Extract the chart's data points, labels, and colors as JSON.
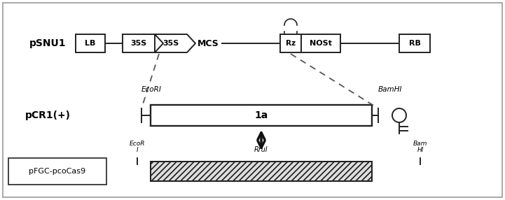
{
  "psnu1_label": "pSNU1",
  "lb_label": "LB",
  "35s1_label": "35S",
  "35s2_label": "35S",
  "mcs_label": "MCS",
  "rz_label": "Rz",
  "nost_label": "NOSt",
  "rb_label": "RB",
  "pcr1_label": "pCR1(+)",
  "insert_label": "1a",
  "ecori_label": "EcoRI",
  "bamhi_label": "BamHI",
  "pfgc_label": "pFGC-pcoCas9",
  "ecori2_label": "EcoR\nI",
  "rrul_label": "RruI",
  "bam2_label": "Bam\nHI",
  "lc": "#222222",
  "dashed_color": "#555555"
}
